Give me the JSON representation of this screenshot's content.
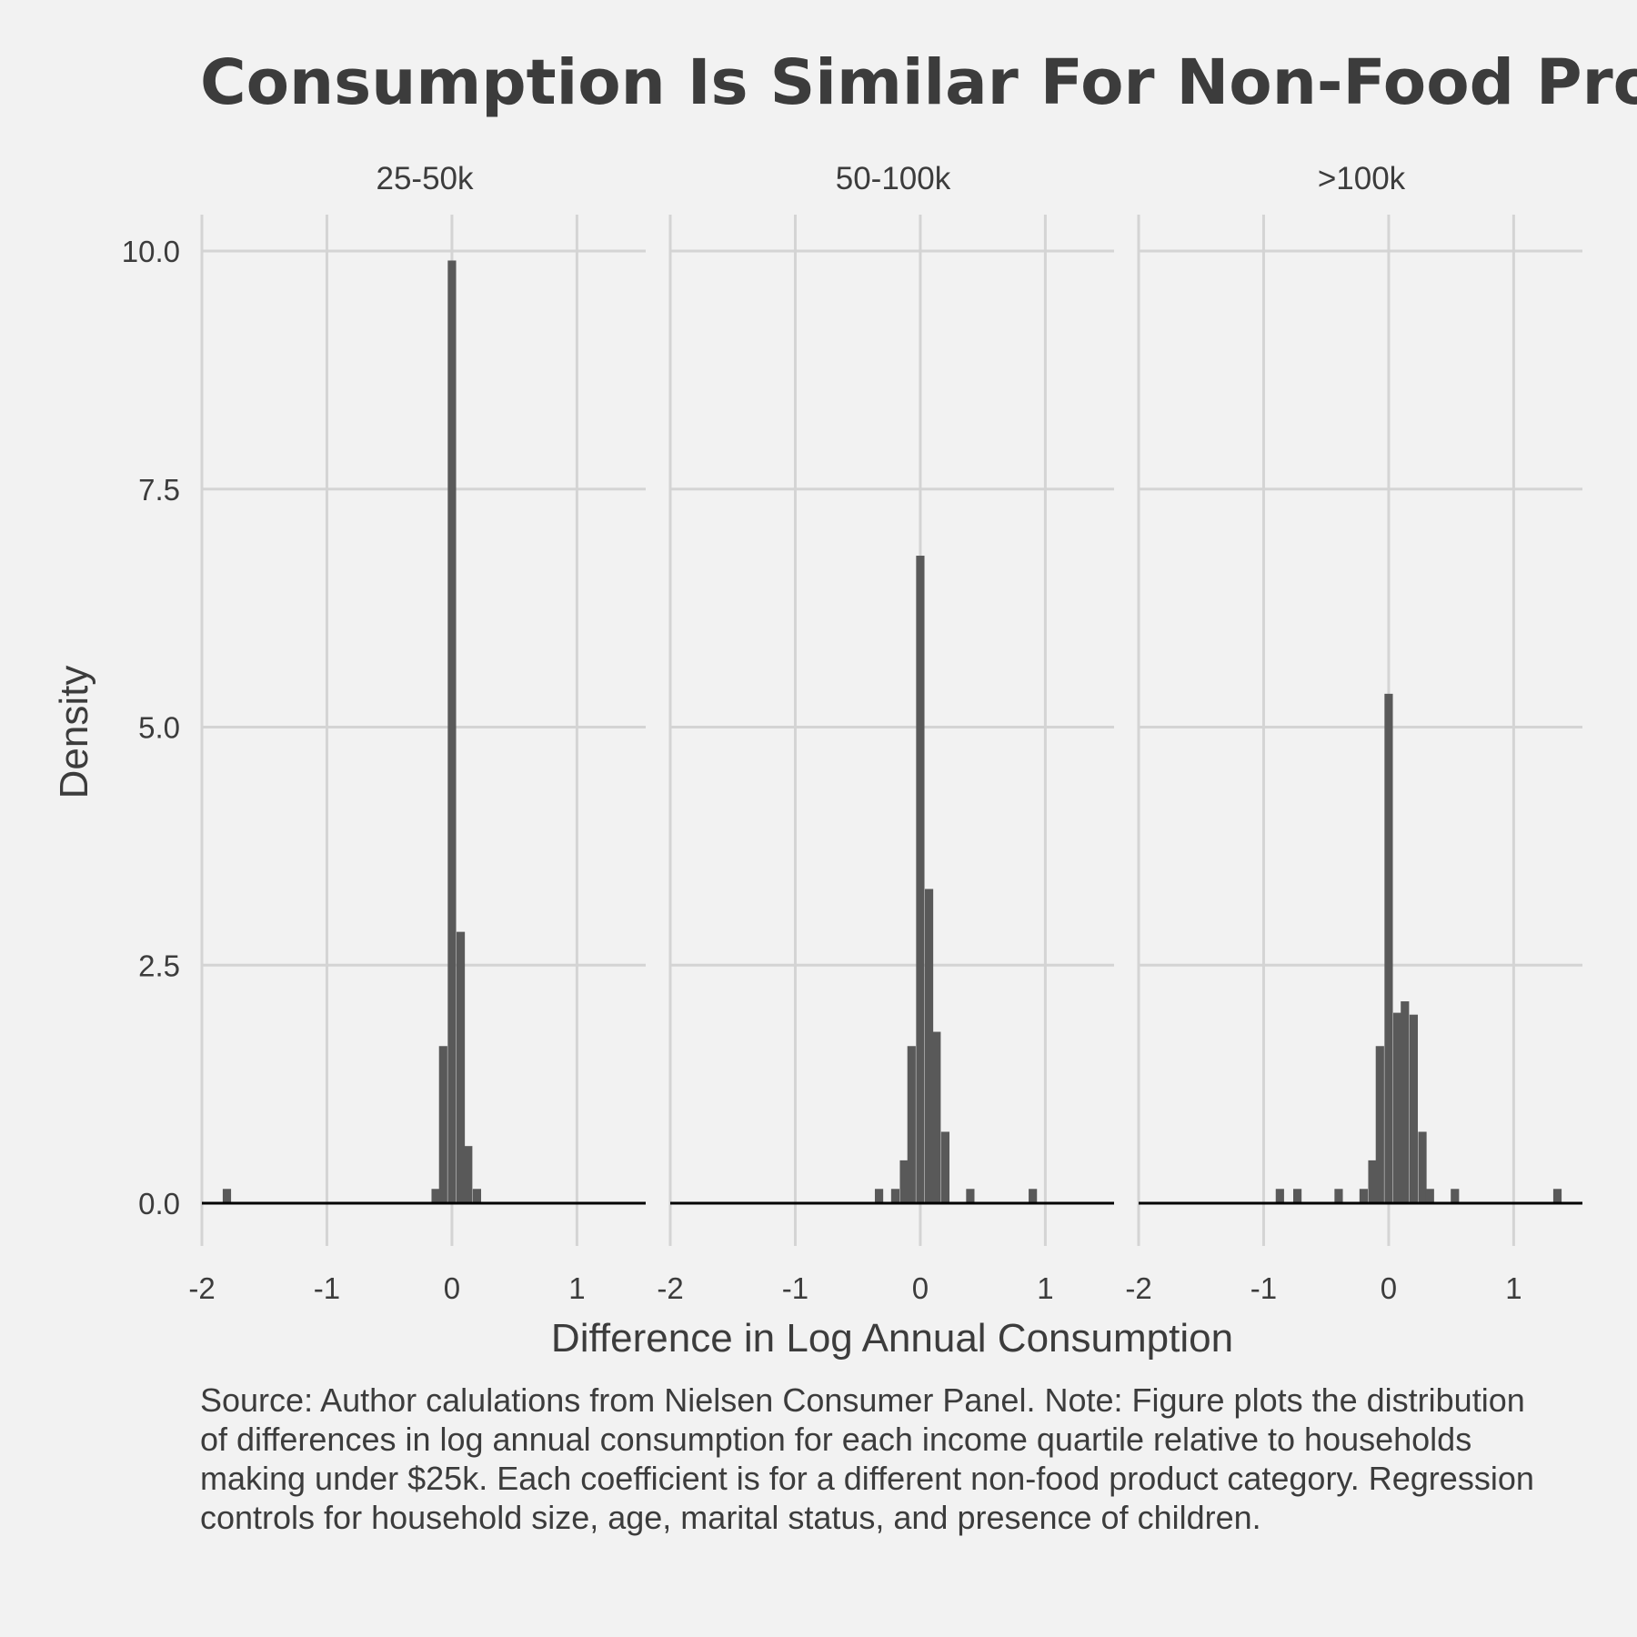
{
  "title": "Consumption Is Similar For Non-Food Produc",
  "caption": "Source: Author calulations from Nielsen Consumer Panel. Note: Figure plots the distribution of differences in log annual consumption for each income quartile relative to households making under $25k. Each coefficient is for a different non-food product category. Regression controls for household size, age, marital status, and presence of children.",
  "chart_data": {
    "type": "bar",
    "subtype": "faceted histogram",
    "xlabel": "Difference in Log Annual Consumption",
    "ylabel": "Density",
    "xlim": [
      -2,
      1.55
    ],
    "ylim": [
      0,
      10
    ],
    "x_ticks": [
      "-2",
      "-1",
      "0",
      "1"
    ],
    "x_tick_values": [
      -2,
      -1,
      0,
      1
    ],
    "y_ticks": [
      "0.0",
      "2.5",
      "5.0",
      "7.5",
      "10.0"
    ],
    "y_tick_values": [
      0,
      2.5,
      5,
      7.5,
      10
    ],
    "grid": true,
    "bin_width": 0.0667,
    "facets": [
      {
        "label": "25-50k",
        "bins": [
          {
            "x": -1.8,
            "y": 0.15
          },
          {
            "x": -0.13,
            "y": 0.15
          },
          {
            "x": -0.07,
            "y": 1.65
          },
          {
            "x": 0.0,
            "y": 9.9
          },
          {
            "x": 0.07,
            "y": 2.85
          },
          {
            "x": 0.13,
            "y": 0.6
          },
          {
            "x": 0.2,
            "y": 0.15
          }
        ]
      },
      {
        "label": "50-100k",
        "bins": [
          {
            "x": -0.33,
            "y": 0.15
          },
          {
            "x": -0.2,
            "y": 0.15
          },
          {
            "x": -0.13,
            "y": 0.45
          },
          {
            "x": -0.07,
            "y": 1.65
          },
          {
            "x": 0.0,
            "y": 6.8
          },
          {
            "x": 0.07,
            "y": 3.3
          },
          {
            "x": 0.13,
            "y": 1.8
          },
          {
            "x": 0.2,
            "y": 0.75
          },
          {
            "x": 0.4,
            "y": 0.15
          },
          {
            "x": 0.9,
            "y": 0.15
          }
        ]
      },
      {
        "label": ">100k",
        "bins": [
          {
            "x": -0.87,
            "y": 0.15
          },
          {
            "x": -0.73,
            "y": 0.15
          },
          {
            "x": -0.4,
            "y": 0.15
          },
          {
            "x": -0.2,
            "y": 0.15
          },
          {
            "x": -0.13,
            "y": 0.45
          },
          {
            "x": -0.07,
            "y": 1.65
          },
          {
            "x": 0.0,
            "y": 5.35
          },
          {
            "x": 0.07,
            "y": 2.0
          },
          {
            "x": 0.13,
            "y": 2.12
          },
          {
            "x": 0.2,
            "y": 1.98
          },
          {
            "x": 0.27,
            "y": 0.75
          },
          {
            "x": 0.33,
            "y": 0.15
          },
          {
            "x": 0.53,
            "y": 0.15
          },
          {
            "x": 1.35,
            "y": 0.15
          }
        ]
      }
    ]
  }
}
